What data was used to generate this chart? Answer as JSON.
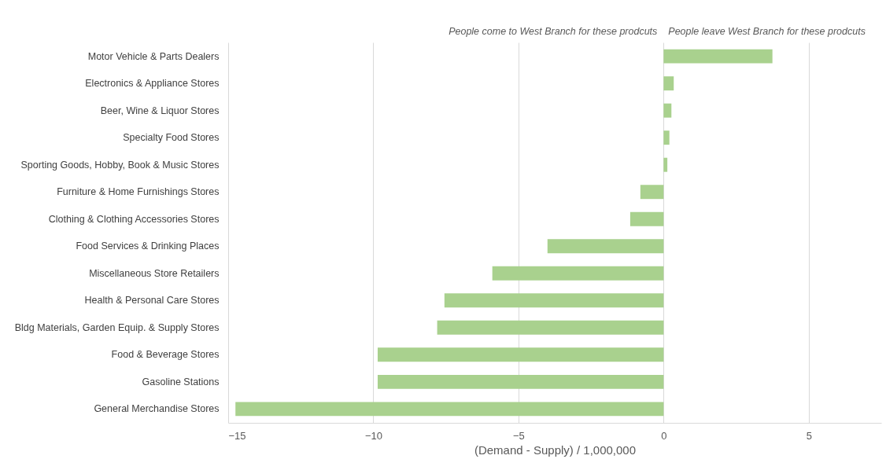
{
  "chart_data": {
    "type": "bar",
    "orientation": "horizontal",
    "xlabel": "(Demand - Supply) / 1,000,000",
    "categories": [
      "Motor Vehicle & Parts Dealers",
      "Electronics & Appliance Stores",
      "Beer, Wine & Liquor Stores",
      "Specialty Food Stores",
      "Sporting Goods, Hobby, Book & Music Stores",
      "Furniture & Home Furnishings Stores",
      "Clothing & Clothing Accessories Stores",
      "Food Services & Drinking Places",
      "Miscellaneous Store Retailers",
      "Health & Personal Care Stores",
      "Bldg Materials, Garden Equip. & Supply Stores",
      "Food & Beverage Stores",
      "Gasoline Stations",
      "General Merchandise Stores"
    ],
    "values": [
      3.75,
      0.35,
      0.27,
      0.2,
      0.13,
      -0.8,
      -1.15,
      -4.0,
      -5.9,
      -7.55,
      -7.8,
      -9.85,
      -9.85,
      -14.75
    ],
    "color": "#a9d18e",
    "xlim": [
      -15,
      7.5
    ],
    "xticks": [
      -15,
      -10,
      -5,
      0,
      5
    ],
    "grid": "x",
    "annotations": [
      "People come to West Branch for these prodcuts",
      "People leave West Branch for these prodcuts"
    ]
  }
}
